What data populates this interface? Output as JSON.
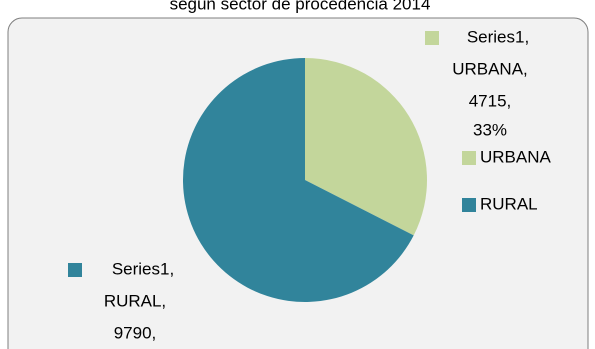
{
  "chart_data": {
    "type": "pie",
    "title": "según sector de procedencia 2014",
    "series_name": "Series1",
    "categories": [
      "URBANA",
      "RURAL"
    ],
    "values": [
      4715,
      9790
    ],
    "colors": [
      "#c3d69b",
      "#31849b"
    ],
    "data_labels": [
      [
        "Series1,",
        "URBANA,",
        "4715,",
        "33%"
      ],
      [
        "Series1,",
        "RURAL,",
        "9790,"
      ]
    ],
    "legend": "right"
  }
}
